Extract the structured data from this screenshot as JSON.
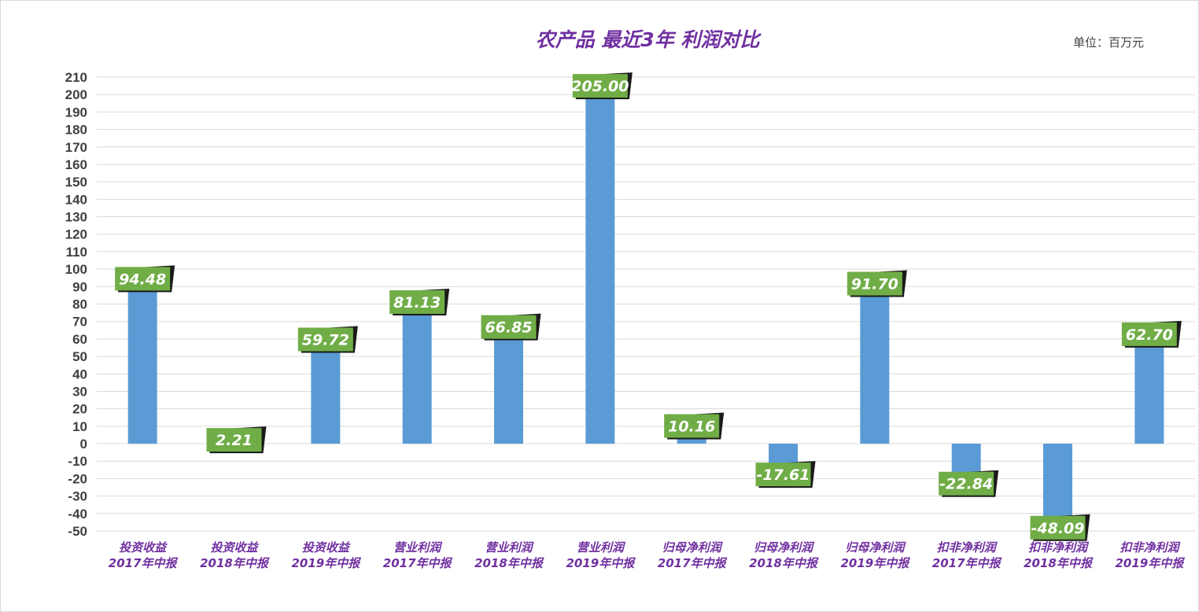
{
  "chart_data": {
    "type": "bar",
    "title": "农产品 最近3年 利润对比",
    "unit_label": "单位：百万元",
    "categories": [
      [
        "投资收益",
        "2017年中报"
      ],
      [
        "投资收益",
        "2018年中报"
      ],
      [
        "投资收益",
        "2019年中报"
      ],
      [
        "营业利润",
        "2017年中报"
      ],
      [
        "营业利润",
        "2018年中报"
      ],
      [
        "营业利润",
        "2019年中报"
      ],
      [
        "归母净利润",
        "2017年中报"
      ],
      [
        "归母净利润",
        "2018年中报"
      ],
      [
        "归母净利润",
        "2019年中报"
      ],
      [
        "扣非净利润",
        "2017年中报"
      ],
      [
        "扣非净利润",
        "2018年中报"
      ],
      [
        "扣非净利润",
        "2019年中报"
      ]
    ],
    "values": [
      94.48,
      2.21,
      59.72,
      81.13,
      66.85,
      205.0,
      10.16,
      -17.61,
      91.7,
      -22.84,
      -48.09,
      62.7
    ],
    "data_labels": [
      "94.48",
      "2.21",
      "59.72",
      "81.13",
      "66.85",
      "205.00",
      "10.16",
      "-17.61",
      "91.70",
      "-22.84",
      "-48.09",
      "62.70"
    ],
    "ylim": [
      -50,
      210
    ],
    "ytick_step": 10,
    "grid": true,
    "legend": "none",
    "colors": {
      "bar": "#5b9bd5",
      "label_box": "#70ad47",
      "title": "#7030a0",
      "category": "#7030a0"
    }
  }
}
